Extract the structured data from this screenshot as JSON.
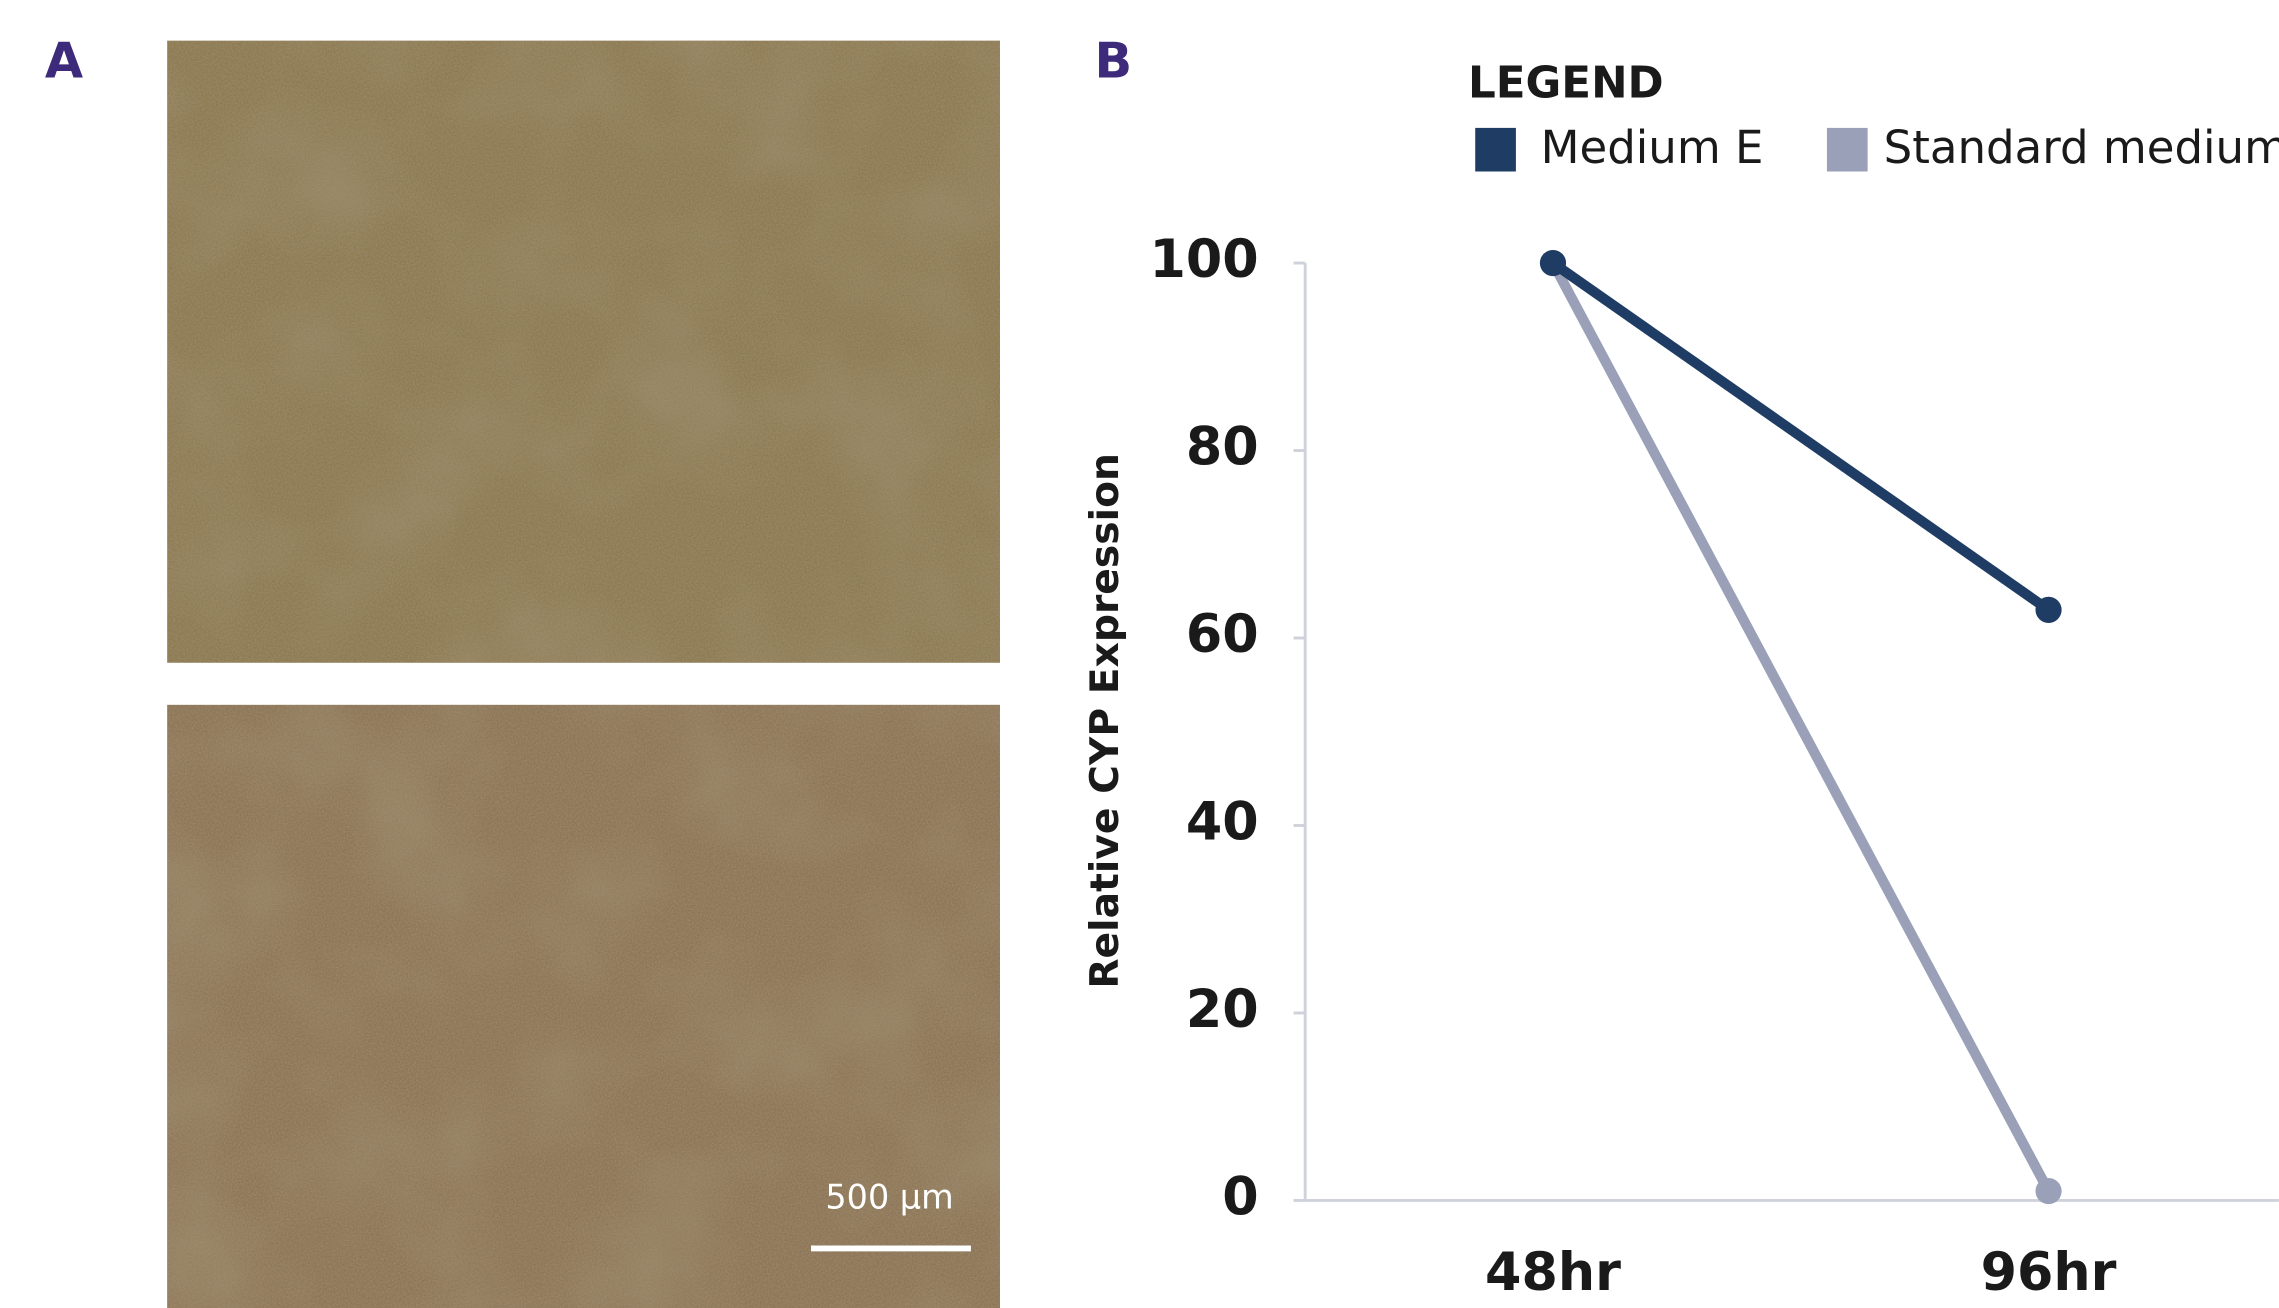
{
  "panel_labels": [
    "A",
    "B"
  ],
  "scale_bar_label": "500 µm",
  "chart_data": {
    "type": "line",
    "legend_title": "LEGEND",
    "y_label": "Relative CYP Expression",
    "categories": [
      "48hr",
      "96hr"
    ],
    "series": [
      {
        "name": "Medium E",
        "color": "#1f3d64",
        "values": [
          100,
          63
        ]
      },
      {
        "name": "Standard medium",
        "color": "#9aa0b8",
        "values": [
          100,
          1
        ]
      }
    ],
    "ylim": [
      0,
      100
    ],
    "yticks": [
      0,
      20,
      40,
      60,
      80,
      100
    ],
    "grid": false
  }
}
